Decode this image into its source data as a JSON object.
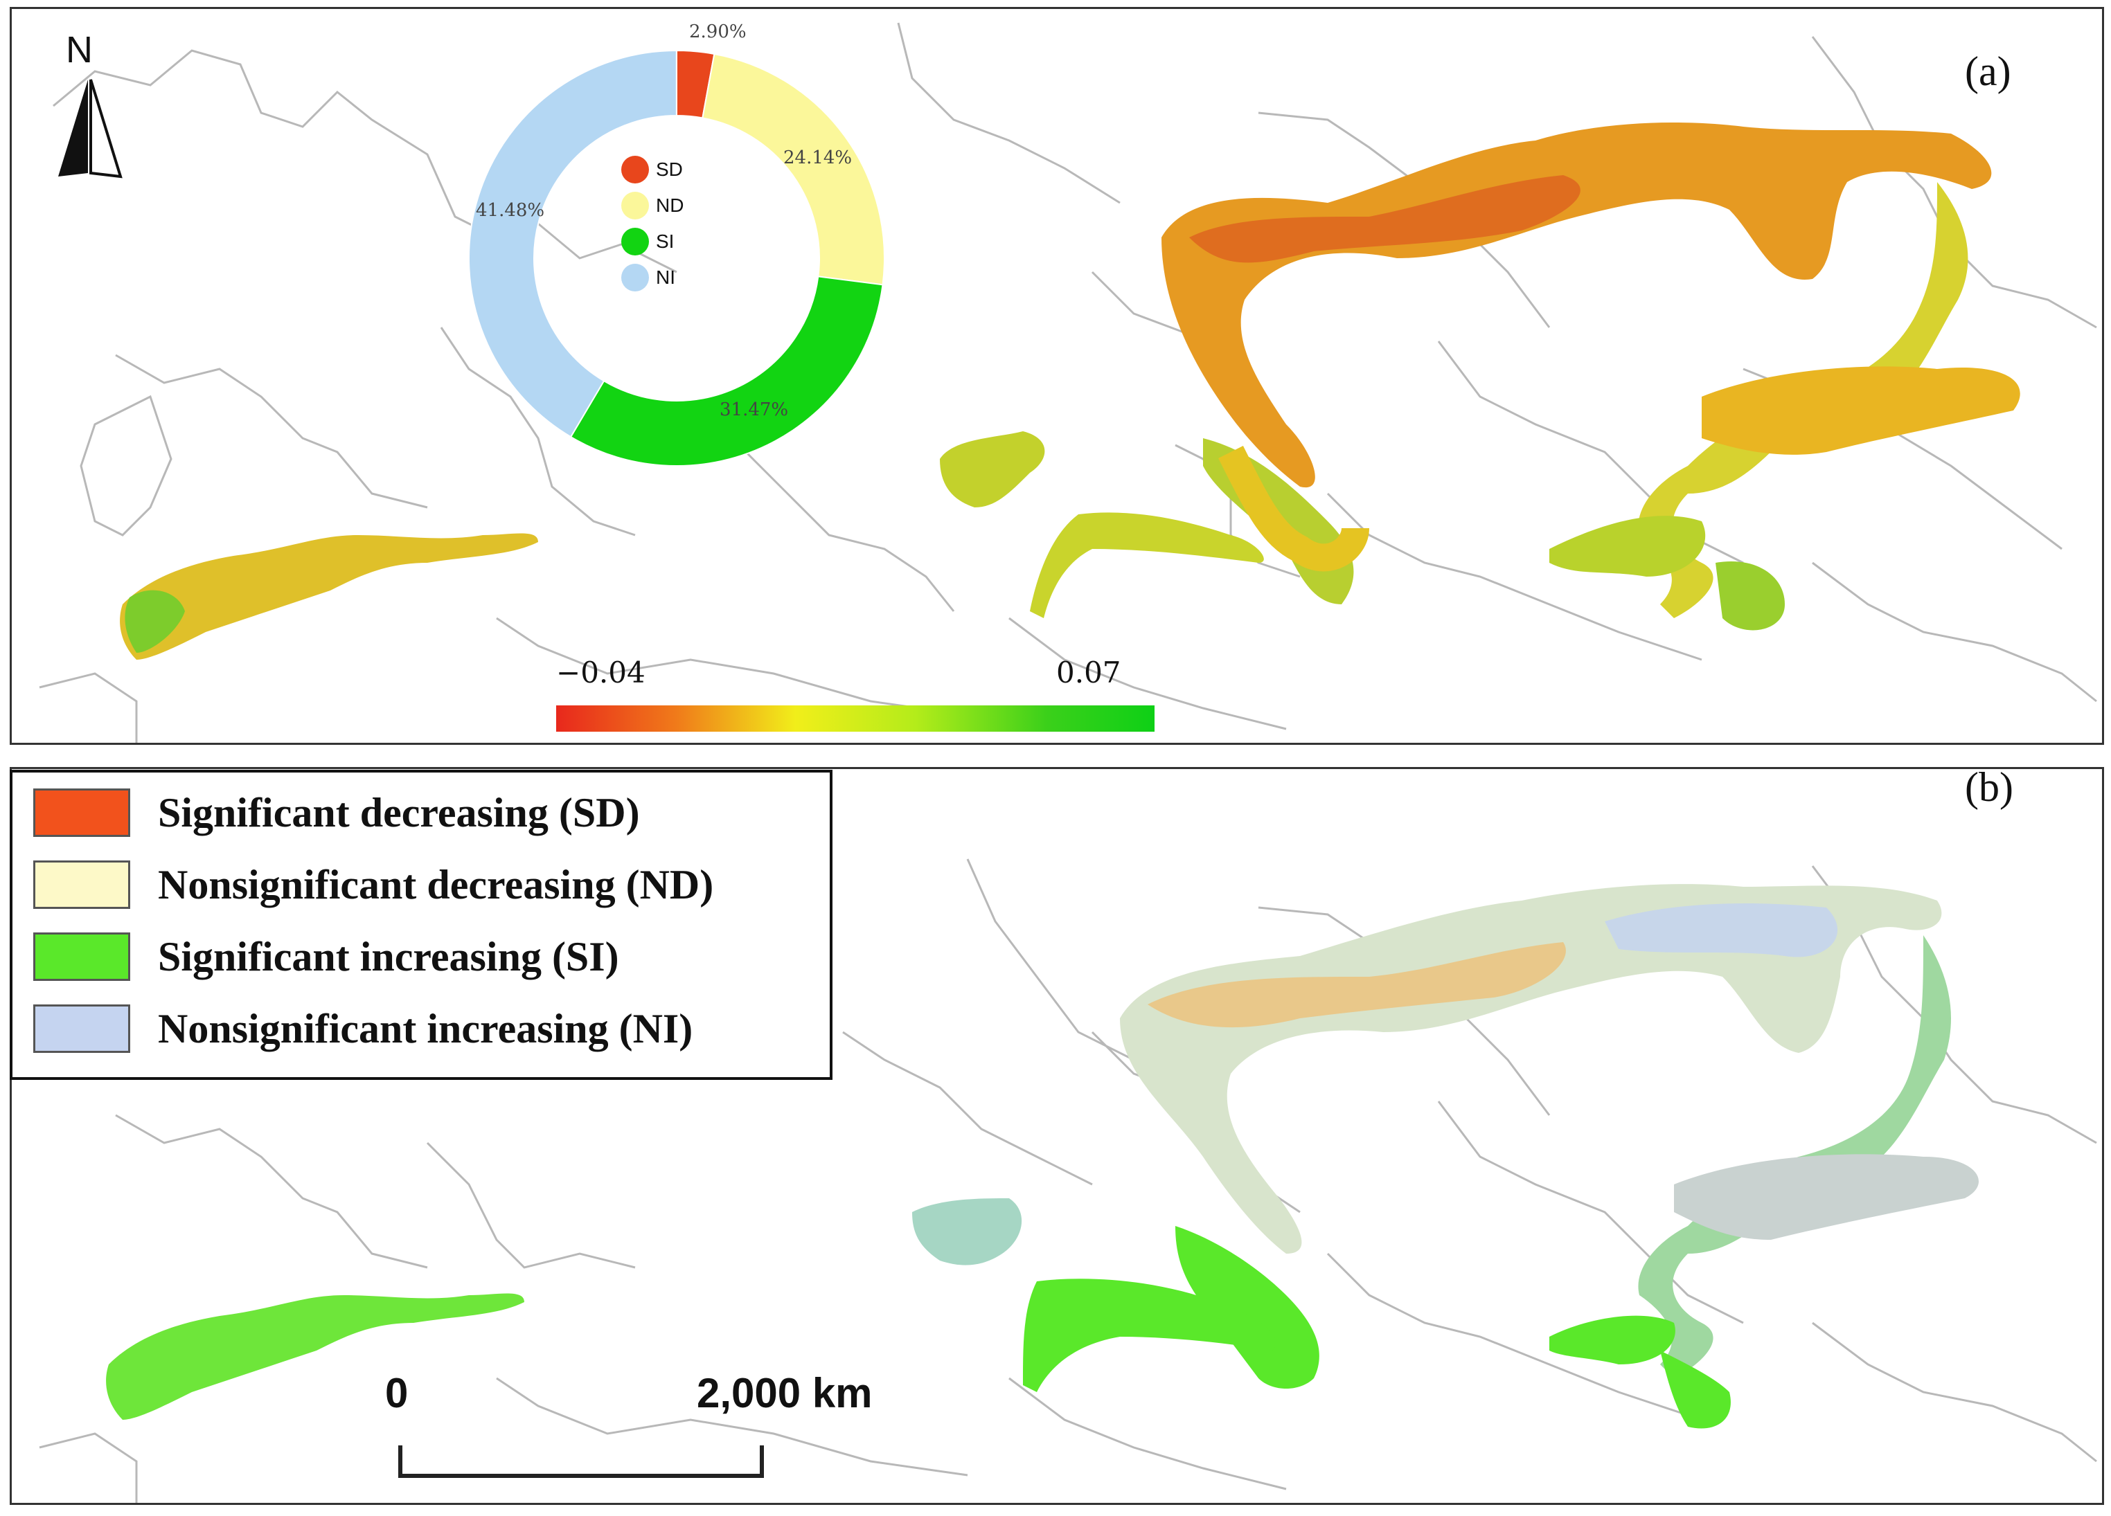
{
  "panel_a": {
    "label": "(a)",
    "north_label": "N",
    "donut": {
      "slices": [
        {
          "key": "SD",
          "percent_label": "2.90%",
          "fraction": 0.029,
          "color": "#e8461c"
        },
        {
          "key": "ND",
          "percent_label": "24.14%",
          "fraction": 0.2414,
          "color": "#fbf79a"
        },
        {
          "key": "SI",
          "percent_label": "31.47%",
          "fraction": 0.3147,
          "color": "#12d412"
        },
        {
          "key": "NI",
          "percent_label": "41.48%",
          "fraction": 0.4148,
          "color": "#b4d7f3"
        }
      ]
    },
    "colorbar": {
      "min_label": "−0.04",
      "max_label": "0.07",
      "min": -0.04,
      "max": 0.07,
      "colors": [
        "#e8281c",
        "#f1ee1a",
        "#0ed016"
      ]
    }
  },
  "panel_b": {
    "label": "(b)",
    "legend": [
      {
        "label": "Significant decreasing (SD)",
        "color": "#f2521c"
      },
      {
        "label": "Nonsignificant decreasing (ND)",
        "color": "#fdf9c8"
      },
      {
        "label": "Significant increasing (SI)",
        "color": "#5ae82a"
      },
      {
        "label": "Nonsignificant increasing (NI)",
        "color": "#c5d4f0"
      }
    ],
    "scale_bar": {
      "start_label": "0",
      "end_label": "2,000 km"
    }
  }
}
